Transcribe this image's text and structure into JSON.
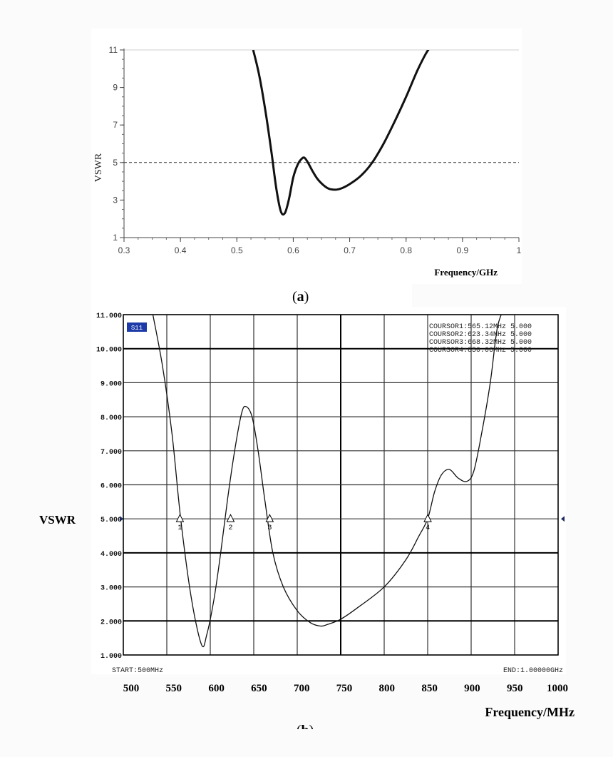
{
  "panel_a_caption_letter": "a",
  "panel_b_caption_letter": "b",
  "panel_b_badge": "S11",
  "chart_data": [
    {
      "type": "line",
      "title": "",
      "xlabel": "Frequency/GHz",
      "ylabel": "VSWR",
      "xlim": [
        0.3,
        1.0
      ],
      "ylim": [
        1,
        11
      ],
      "x_ticks": [
        "0.3",
        "0.4",
        "0.5",
        "0.6",
        "0.7",
        "0.8",
        "0.9",
        "1"
      ],
      "y_ticks": [
        "1",
        "3",
        "5",
        "7",
        "9",
        "11"
      ],
      "reference_line": {
        "y": 5,
        "style": "dashed"
      },
      "series": [
        {
          "x": [
            0.529,
            0.54,
            0.552,
            0.562,
            0.57,
            0.578,
            0.585,
            0.592,
            0.6,
            0.608,
            0.615,
            0.62,
            0.626,
            0.635,
            0.645,
            0.66,
            0.673,
            0.685,
            0.7,
            0.72,
            0.74,
            0.76,
            0.78,
            0.8,
            0.82,
            0.835,
            0.844
          ],
          "y": [
            11.0,
            9.6,
            7.5,
            5.4,
            3.6,
            2.4,
            2.3,
            3.0,
            4.2,
            4.9,
            5.2,
            5.25,
            5.0,
            4.5,
            4.05,
            3.65,
            3.55,
            3.62,
            3.85,
            4.3,
            5.0,
            6.0,
            7.2,
            8.5,
            9.9,
            10.8,
            11.2
          ]
        }
      ]
    },
    {
      "type": "line",
      "xlabel": "Frequency/MHz",
      "ylabel": "VSWR",
      "xlim": [
        500,
        1000
      ],
      "ylim": [
        1,
        11
      ],
      "x_ticks": [
        "500",
        "550",
        "600",
        "650",
        "700",
        "750",
        "800",
        "850",
        "900",
        "950",
        "1000"
      ],
      "y_ticks": [
        "1.000",
        "2.000",
        "3.000",
        "4.000",
        "5.000",
        "6.000",
        "7.000",
        "8.000",
        "9.000",
        "10.000",
        "11.000"
      ],
      "start_label": "START:500MHz",
      "end_label": "END:1.00000GHz",
      "cursor_readout": [
        "COURSOR1:565.12MHz 5.000",
        "COURSOR2:623.34MHz 5.000",
        "COURSOR3:668.32MHz 5.000",
        "COURSOR4:850.06MHz 5.000"
      ],
      "markers": [
        {
          "label": "1",
          "x": 565.12,
          "y": 5.0
        },
        {
          "label": "2",
          "x": 623.34,
          "y": 5.0
        },
        {
          "label": "3",
          "x": 668.32,
          "y": 5.0
        },
        {
          "label": "4",
          "x": 850.06,
          "y": 5.0
        }
      ],
      "series": [
        {
          "x": [
            534,
            545,
            556,
            566,
            578,
            590,
            596,
            604,
            612,
            620,
            628,
            636,
            641,
            648,
            655,
            663,
            672,
            684,
            700,
            715,
            727,
            735,
            750,
            770,
            800,
            825,
            840,
            850,
            858,
            866,
            875,
            885,
            895,
            903,
            912,
            922,
            930,
            938
          ],
          "y": [
            11.0,
            9.5,
            7.5,
            5.0,
            2.7,
            1.3,
            1.6,
            2.6,
            4.0,
            5.6,
            7.0,
            8.1,
            8.3,
            8.0,
            7.0,
            5.5,
            4.0,
            3.0,
            2.3,
            1.95,
            1.85,
            1.9,
            2.05,
            2.4,
            3.0,
            3.8,
            4.5,
            5.0,
            5.8,
            6.3,
            6.45,
            6.2,
            6.1,
            6.4,
            7.5,
            9.0,
            10.6,
            11.2
          ]
        }
      ]
    }
  ]
}
